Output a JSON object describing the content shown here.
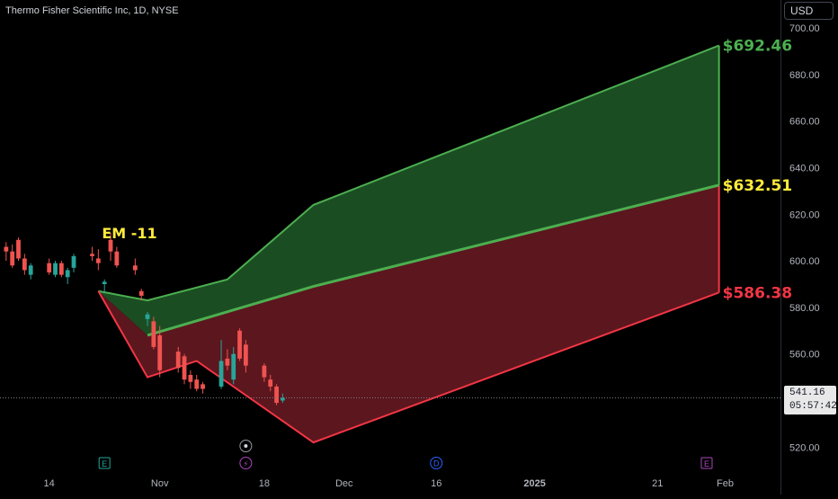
{
  "header": {
    "title": "Thermo Fisher Scientific Inc, 1D, NYSE",
    "currency": "USD"
  },
  "price_badge": {
    "price": "541.16",
    "countdown": "05:57:42"
  },
  "colors": {
    "background": "#000000",
    "up": "#26a69a",
    "down": "#ef5350",
    "upper_band_line": "#4caf50",
    "upper_band_fill": "#1b4d22",
    "lower_band_line": "#f23645",
    "lower_band_fill": "#5c161e",
    "label_high": "#4caf50",
    "label_mid": "#ffeb3b",
    "label_low": "#f23645",
    "label_em": "#ffeb3b",
    "axis_text": "#b2b5be",
    "event_icon": "#787b86"
  },
  "events": [
    {
      "icon": "earnings-icon",
      "label": "E",
      "date": "2024-10-23"
    },
    {
      "icon": "split-icon",
      "label": "⚡",
      "date": "2024-11-15"
    },
    {
      "icon": "dividend-icon",
      "label": "D",
      "date": "2024-12-16"
    },
    {
      "icon": "earnings-icon",
      "label": "E",
      "date": "2025-01-29"
    }
  ],
  "chart_data": {
    "type": "candlestick",
    "title": "Thermo Fisher Scientific Inc, 1D, NYSE",
    "ylabel": "USD",
    "ylim": [
      512,
      712
    ],
    "y_ticks": [
      520,
      540,
      560,
      580,
      600,
      620,
      640,
      660,
      680,
      700
    ],
    "x_tick_labels": [
      {
        "label": "14",
        "date": "2024-10-14"
      },
      {
        "label": "Nov",
        "date": "2024-11-01"
      },
      {
        "label": "18",
        "date": "2024-11-18"
      },
      {
        "label": "Dec",
        "date": "2024-12-01"
      },
      {
        "label": "16",
        "date": "2024-12-16"
      },
      {
        "label": "2025",
        "date": "2025-01-01"
      },
      {
        "label": "21",
        "date": "2025-01-21"
      },
      {
        "label": "Feb",
        "date": "2025-02-01"
      }
    ],
    "x_range": [
      "2024-10-06",
      "2025-02-10"
    ],
    "candles": [
      {
        "date": "2024-10-07",
        "open": 606,
        "high": 608,
        "low": 600,
        "close": 604
      },
      {
        "date": "2024-10-08",
        "open": 604,
        "high": 607,
        "low": 597,
        "close": 598
      },
      {
        "date": "2024-10-09",
        "open": 609,
        "high": 610,
        "low": 600,
        "close": 601
      },
      {
        "date": "2024-10-10",
        "open": 601,
        "high": 603,
        "low": 594,
        "close": 596
      },
      {
        "date": "2024-10-11",
        "open": 594,
        "high": 599,
        "low": 592,
        "close": 598
      },
      {
        "date": "2024-10-14",
        "open": 599,
        "high": 601,
        "low": 594,
        "close": 595
      },
      {
        "date": "2024-10-15",
        "open": 594,
        "high": 600,
        "low": 593,
        "close": 599
      },
      {
        "date": "2024-10-16",
        "open": 599,
        "high": 600,
        "low": 593,
        "close": 594
      },
      {
        "date": "2024-10-17",
        "open": 593,
        "high": 597,
        "low": 590,
        "close": 596
      },
      {
        "date": "2024-10-18",
        "open": 597,
        "high": 603,
        "low": 595,
        "close": 602
      },
      {
        "date": "2024-10-21",
        "open": 603,
        "high": 606,
        "low": 600,
        "close": 602
      },
      {
        "date": "2024-10-22",
        "open": 601,
        "high": 605,
        "low": 596,
        "close": 599
      },
      {
        "date": "2024-10-23",
        "open": 590,
        "high": 592,
        "low": 586,
        "close": 591
      },
      {
        "date": "2024-10-24",
        "open": 609,
        "high": 612,
        "low": 600,
        "close": 604
      },
      {
        "date": "2024-10-25",
        "open": 604,
        "high": 606,
        "low": 597,
        "close": 598
      },
      {
        "date": "2024-10-28",
        "open": 598,
        "high": 601,
        "low": 594,
        "close": 596
      },
      {
        "date": "2024-10-29",
        "open": 587,
        "high": 588,
        "low": 583,
        "close": 585
      },
      {
        "date": "2024-10-30",
        "open": 575,
        "high": 578,
        "low": 572,
        "close": 577
      },
      {
        "date": "2024-10-31",
        "open": 574,
        "high": 576,
        "low": 562,
        "close": 563
      },
      {
        "date": "2024-11-01",
        "open": 568,
        "high": 572,
        "low": 550,
        "close": 553
      },
      {
        "date": "2024-11-04",
        "open": 561,
        "high": 563,
        "low": 552,
        "close": 554
      },
      {
        "date": "2024-11-05",
        "open": 559,
        "high": 560,
        "low": 547,
        "close": 549
      },
      {
        "date": "2024-11-06",
        "open": 551,
        "high": 553,
        "low": 545,
        "close": 548
      },
      {
        "date": "2024-11-07",
        "open": 549,
        "high": 551,
        "low": 544,
        "close": 545
      },
      {
        "date": "2024-11-08",
        "open": 547,
        "high": 548,
        "low": 543,
        "close": 545
      },
      {
        "date": "2024-11-11",
        "open": 546,
        "high": 566,
        "low": 545,
        "close": 557
      },
      {
        "date": "2024-11-12",
        "open": 558,
        "high": 562,
        "low": 553,
        "close": 555
      },
      {
        "date": "2024-11-13",
        "open": 549,
        "high": 563,
        "low": 547,
        "close": 560
      },
      {
        "date": "2024-11-14",
        "open": 570,
        "high": 571,
        "low": 557,
        "close": 558
      },
      {
        "date": "2024-11-15",
        "open": 564,
        "high": 566,
        "low": 552,
        "close": 555
      },
      {
        "date": "2024-11-18",
        "open": 555,
        "high": 556,
        "low": 548,
        "close": 550
      },
      {
        "date": "2024-11-19",
        "open": 549,
        "high": 551,
        "low": 544,
        "close": 546
      },
      {
        "date": "2024-11-20",
        "open": 546,
        "high": 547,
        "low": 538,
        "close": 539
      },
      {
        "date": "2024-11-21",
        "open": 540,
        "high": 543,
        "low": 539,
        "close": 541.16
      }
    ],
    "bands": {
      "upper": {
        "points": [
          {
            "date": "2024-10-22",
            "value": 587
          },
          {
            "date": "2024-10-30",
            "value": 583
          },
          {
            "date": "2024-11-12",
            "value": 592
          },
          {
            "date": "2024-11-26",
            "value": 624
          },
          {
            "date": "2025-01-31",
            "value": 692.46
          }
        ],
        "label": "$692.46"
      },
      "middle": {
        "points": [
          {
            "date": "2024-10-30",
            "value": 568
          },
          {
            "date": "2024-11-26",
            "value": 589
          },
          {
            "date": "2025-01-31",
            "value": 632.51
          }
        ],
        "label": "$632.51"
      },
      "lower": {
        "points": [
          {
            "date": "2024-10-22",
            "value": 587
          },
          {
            "date": "2024-10-30",
            "value": 550
          },
          {
            "date": "2024-11-07",
            "value": 557
          },
          {
            "date": "2024-11-26",
            "value": 522
          },
          {
            "date": "2025-01-31",
            "value": 586.38
          }
        ],
        "label": "$586.38"
      }
    },
    "annotations": [
      {
        "text": "EM -11",
        "date": "2024-10-22",
        "value": 612
      }
    ],
    "last_price": 541.16
  }
}
